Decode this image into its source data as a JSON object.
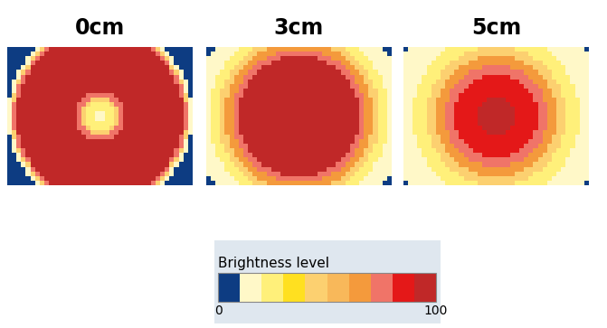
{
  "chart_data": {
    "type": "heatmap",
    "panels": [
      {
        "title": "0cm",
        "grid": [
          40,
          30
        ],
        "radius": [
          1.2,
          3.0,
          4.0,
          5.2,
          18.0,
          18.7,
          19.3,
          20.0,
          60.0
        ],
        "brightness": [
          15,
          25,
          45,
          75,
          95,
          75,
          45,
          15,
          5
        ]
      },
      {
        "title": "3cm",
        "grid": [
          40,
          30
        ],
        "radius": [
          13.0,
          14.5,
          16.0,
          17.5,
          19.5,
          23.5,
          60.0
        ],
        "brightness": [
          95,
          75,
          65,
          45,
          25,
          15,
          5
        ]
      },
      {
        "title": "5cm",
        "grid": [
          40,
          30
        ],
        "radius": [
          4.0,
          9.0,
          11.0,
          13.0,
          15.0,
          18.0,
          24.0,
          60.0
        ],
        "brightness": [
          95,
          85,
          75,
          65,
          45,
          25,
          15,
          5
        ]
      }
    ],
    "colorbar": {
      "label": "Brightness level",
      "range": [
        0,
        100
      ],
      "ticks": [
        0,
        100
      ],
      "colors": [
        "#0d3c82",
        "#fff8c8",
        "#fff07a",
        "#ffe020",
        "#fcd070",
        "#f8b85a",
        "#f49a3c",
        "#f07468",
        "#e41818",
        "#c02828"
      ]
    },
    "tick_labels": false
  }
}
